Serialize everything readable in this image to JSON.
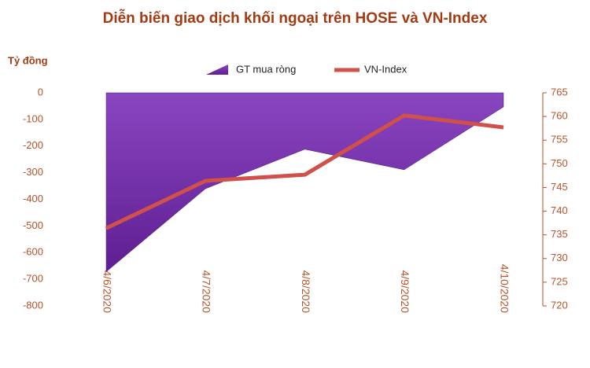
{
  "chart_data": {
    "type": "area-line",
    "title": "Diễn biến giao dịch khối ngoại trên HOSE và VN-Index",
    "y_label": "Tỷ đồng",
    "categories": [
      "4/6/2020",
      "4/7/2020",
      "4/8/2020",
      "4/9/2020",
      "4/10/2020"
    ],
    "series": [
      {
        "name": "GT mua ròng",
        "color": "#7030a0",
        "type": "area",
        "values": [
          -672,
          -360,
          -212,
          -289,
          -53
        ]
      },
      {
        "name": "VN-Index",
        "color": "#d0504a",
        "type": "line",
        "axis": "y2",
        "values": [
          736.4,
          746.4,
          747.7,
          760.2,
          757.7
        ]
      }
    ],
    "ylim": [
      -800,
      0
    ],
    "yticks": [
      0,
      -100,
      -200,
      -300,
      -400,
      -500,
      -600,
      -700,
      -800
    ],
    "y2lim": [
      720,
      765
    ],
    "y2ticks": [
      765,
      760,
      755,
      750,
      745,
      740,
      735,
      730,
      725,
      720
    ],
    "legend": "top"
  }
}
